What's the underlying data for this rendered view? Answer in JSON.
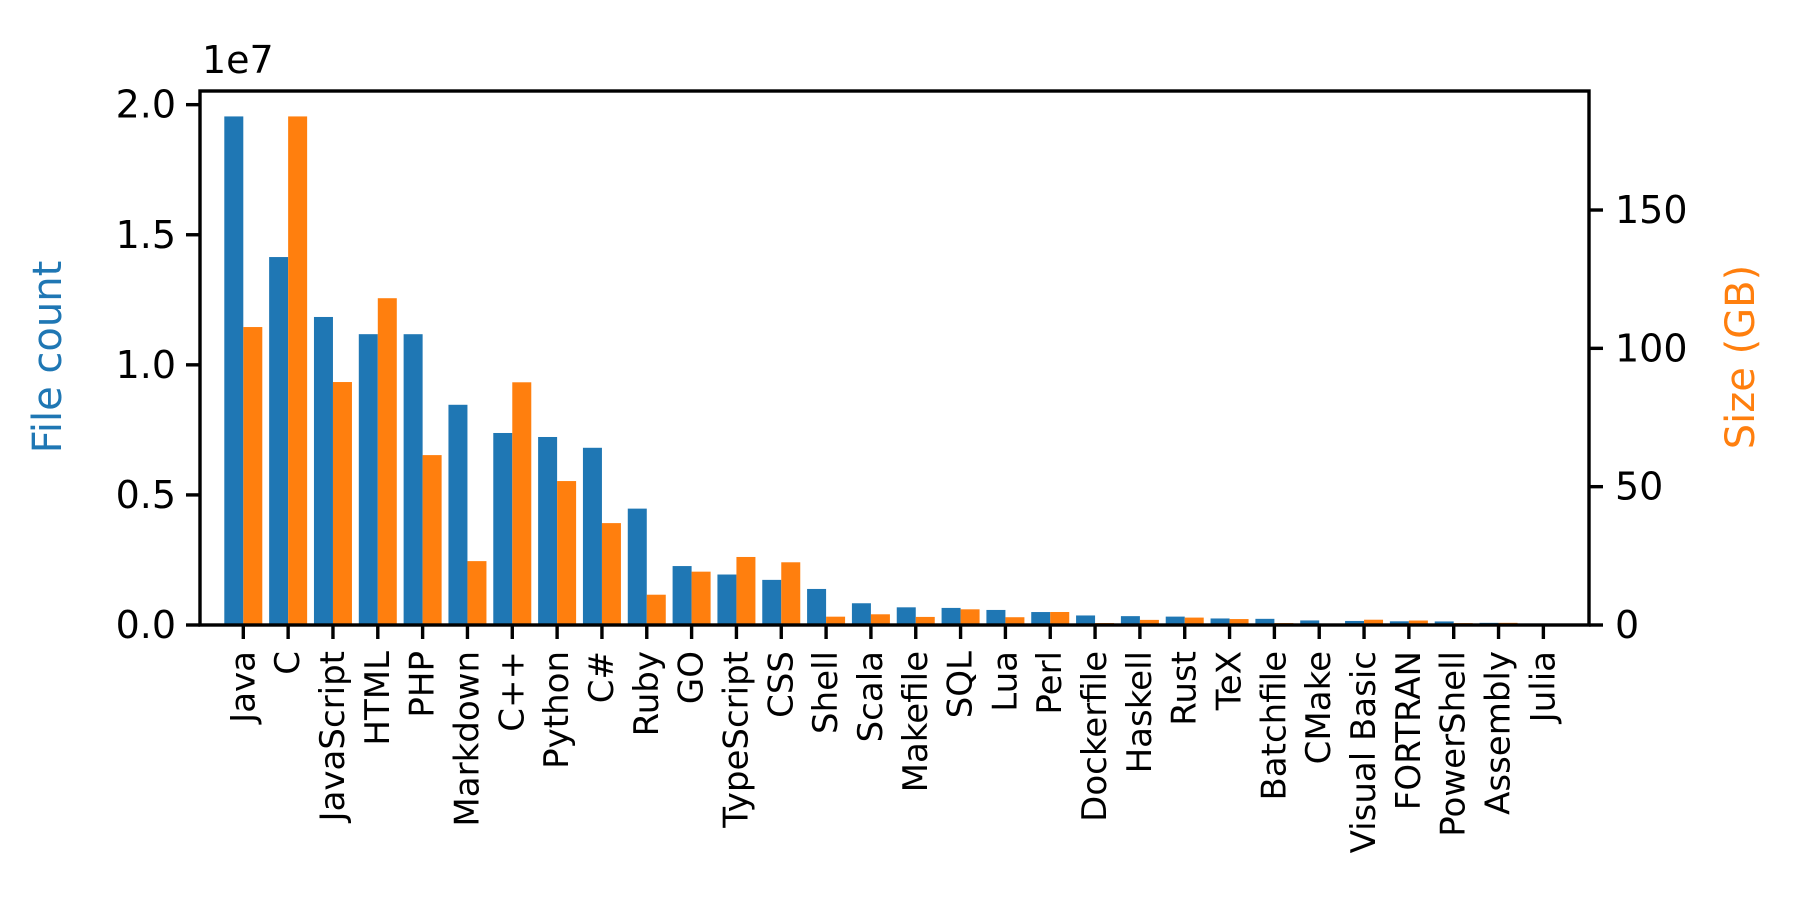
{
  "figure": {
    "background": "#ffffff",
    "axis_color": "#000000"
  },
  "chart_data": {
    "type": "bar",
    "title": "",
    "grid": false,
    "legend": "none",
    "categories": [
      "Java",
      "C",
      "JavaScript",
      "HTML",
      "PHP",
      "Markdown",
      "C++",
      "Python",
      "C#",
      "Ruby",
      "GO",
      "TypeScript",
      "CSS",
      "Shell",
      "Scala",
      "Makefile",
      "SQL",
      "Lua",
      "Perl",
      "Dockerfile",
      "Haskell",
      "Rust",
      "TeX",
      "Batchfile",
      "CMake",
      "Visual Basic",
      "FORTRAN",
      "PowerShell",
      "Assembly",
      "Julia"
    ],
    "series": [
      {
        "name": "File count",
        "axis": "left",
        "color": "#1f77b4",
        "values": [
          19548190,
          14143113,
          11839883,
          11178557,
          11177610,
          8464626,
          7380520,
          7226626,
          6811652,
          4473331,
          2265436,
          1940406,
          1734406,
          1385648,
          835755,
          679430,
          656671,
          578554,
          497949,
          366505,
          340623,
          322431,
          251015,
          236945,
          175282,
          155652,
          142038,
          136846,
          82905,
          58317
        ]
      },
      {
        "name": "Size (GB)",
        "axis": "right",
        "color": "#ff7f0e",
        "values": [
          107.7,
          183.83,
          87.82,
          118.12,
          61.41,
          23.09,
          87.73,
          52.03,
          36.83,
          10.95,
          19.28,
          24.59,
          22.67,
          3.01,
          3.87,
          2.92,
          5.67,
          2.81,
          4.7,
          0.71,
          1.85,
          2.68,
          2.15,
          0.7,
          0.54,
          1.91,
          1.62,
          0.69,
          0.78,
          0.29
        ]
      }
    ],
    "left_axis": {
      "label": "File count",
      "color": "#1f77b4",
      "offset_text": "1e7",
      "ylim": [
        0,
        20525600
      ],
      "ticks": [
        {
          "value": 0,
          "label": "0.0"
        },
        {
          "value": 5000000,
          "label": "0.5"
        },
        {
          "value": 10000000,
          "label": "1.0"
        },
        {
          "value": 15000000,
          "label": "1.5"
        },
        {
          "value": 20000000,
          "label": "2.0"
        }
      ]
    },
    "right_axis": {
      "label": "Size (GB)",
      "color": "#ff7f0e",
      "ylim": [
        0,
        193.02
      ],
      "ticks": [
        {
          "value": 0,
          "label": "0"
        },
        {
          "value": 50,
          "label": "50"
        },
        {
          "value": 100,
          "label": "100"
        },
        {
          "value": 150,
          "label": "150"
        }
      ]
    }
  }
}
